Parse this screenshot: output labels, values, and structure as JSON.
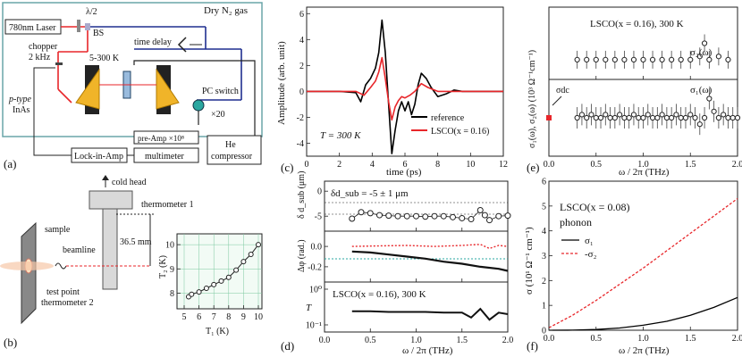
{
  "panel_a": {
    "label": "(a)",
    "gas_box": "Dry N₂ gas",
    "laser": "780nm Laser",
    "half_wave": "λ/2",
    "bs": "BS",
    "time_delay": "time delay",
    "chopper": "chopper",
    "chopper_freq": "2 kHz",
    "temp_range": "5-300 K",
    "ptype_1": "p-type",
    "ptype_2": "InAs",
    "pc_switch": "PC switch",
    "x20": "×20",
    "preamp": "pre-Amp ×10⁸",
    "lockin": "Lock-in-Amp",
    "multimeter": "multimeter",
    "he_1": "He",
    "he_2": "compressor"
  },
  "panel_b": {
    "label": "(b)",
    "cold_head": "cold head",
    "thermometer1": "thermometer 1",
    "sample": "sample",
    "beamline": "beamline",
    "distance": "36.5 mm",
    "test_point": "test point",
    "thermometer2": "thermometer 2",
    "inset": {
      "xlabel": "T₁ (K)",
      "ylabel": "T₂ (K)",
      "xticks": [
        "5",
        "6",
        "7",
        "8",
        "9",
        "10"
      ],
      "yticks": [
        "8",
        "9",
        "10"
      ],
      "x": [
        5.3,
        5.5,
        6.0,
        6.5,
        7.0,
        7.5,
        8.0,
        8.5,
        9.0,
        9.5,
        10.0
      ],
      "y": [
        7.85,
        7.95,
        8.05,
        8.2,
        8.35,
        8.5,
        8.65,
        8.95,
        9.3,
        9.6,
        10.0
      ]
    }
  },
  "panel_c": {
    "label": "(c)",
    "ylabel": "Amplitude (arb. unit)",
    "xlabel": "time (ps)",
    "xticks": [
      "0",
      "2",
      "4",
      "6",
      "8",
      "10",
      "12"
    ],
    "yticks": [
      "-4",
      "-2",
      "0",
      "2",
      "4",
      "6"
    ],
    "annotation": "T = 300 K",
    "legend": [
      "reference",
      "LSCO(x = 0.16)"
    ],
    "colors": {
      "reference": "#000000",
      "sample": "#e8262a"
    },
    "chart_data": {
      "type": "line",
      "xlim": [
        0,
        12
      ],
      "ylim": [
        -5,
        6.5
      ],
      "series": [
        {
          "name": "reference",
          "x": [
            0,
            1,
            2,
            3,
            3.3,
            3.6,
            3.9,
            4.2,
            4.4,
            4.6,
            4.8,
            5.0,
            5.2,
            5.4,
            5.6,
            5.8,
            6.0,
            6.2,
            6.4,
            6.6,
            6.8,
            7.0,
            7.3,
            7.6,
            8.0,
            8.5,
            9.0,
            9.5,
            10,
            11,
            12
          ],
          "y": [
            0,
            0,
            0,
            -0.1,
            -0.8,
            0.5,
            1.0,
            1.8,
            3.0,
            5.5,
            3.0,
            -1.0,
            -4.8,
            -3.0,
            -1.5,
            -0.8,
            -1.5,
            -0.8,
            -1.8,
            -1.0,
            0.5,
            1.4,
            1.0,
            0.3,
            -0.4,
            -0.2,
            0.1,
            0,
            0,
            0,
            0
          ]
        },
        {
          "name": "LSCO(x = 0.16)",
          "x": [
            0,
            1,
            2,
            3,
            3.5,
            3.9,
            4.2,
            4.4,
            4.6,
            4.8,
            5.0,
            5.2,
            5.4,
            5.6,
            5.8,
            6.0,
            6.3,
            6.6,
            7.0,
            7.4,
            8.0,
            9,
            10,
            11,
            12
          ],
          "y": [
            0,
            0,
            0,
            0,
            -0.3,
            0.3,
            0.8,
            1.5,
            2.6,
            1.0,
            -0.8,
            -2.2,
            -1.2,
            -0.7,
            -0.4,
            -0.5,
            -0.3,
            0.0,
            0.6,
            0.3,
            0.0,
            0,
            0,
            0,
            0
          ]
        }
      ]
    }
  },
  "panel_d": {
    "label": "(d)",
    "xlabel": "ω / 2π (THz)",
    "xticks": [
      "0.0",
      "0.5",
      "1.0",
      "1.5",
      "2.0"
    ],
    "top": {
      "annotation": "δd_sub = -5 ± 1 μm",
      "ylabel": "δ d_sub (μm)",
      "yticks": [
        "0",
        "-5"
      ]
    },
    "mid": {
      "ylabel": "Δφ (rad.)",
      "yticks": [
        "0.0",
        "-0.2"
      ]
    },
    "bottom": {
      "annotation": "LSCO(x = 0.16), 300 K",
      "ylabel": "T",
      "yticks": [
        "10⁰",
        "10⁻¹"
      ]
    },
    "chart_data": {
      "type": "line",
      "xlim": [
        0,
        2
      ],
      "series": [
        {
          "name": "δd_sub",
          "x": [
            0.3,
            0.4,
            0.5,
            0.6,
            0.7,
            0.8,
            0.9,
            1.0,
            1.1,
            1.2,
            1.3,
            1.4,
            1.5,
            1.6,
            1.7,
            1.75,
            1.8,
            1.9,
            2.0
          ],
          "y": [
            -5.5,
            -4.2,
            -4.4,
            -4.8,
            -4.9,
            -5.0,
            -5.0,
            -5.0,
            -5.1,
            -5.0,
            -5.0,
            -5.2,
            -5.4,
            -5.6,
            -3.8,
            -4.8,
            -5.8,
            -5.0,
            -4.9
          ]
        },
        {
          "name": "Δφ",
          "x": [
            0.3,
            0.5,
            0.7,
            0.9,
            1.1,
            1.3,
            1.5,
            1.7,
            1.9,
            2.0
          ],
          "y": [
            -0.05,
            -0.06,
            -0.08,
            -0.1,
            -0.12,
            -0.15,
            -0.17,
            -0.2,
            -0.22,
            -0.24
          ]
        },
        {
          "name": "T",
          "x": [
            0.3,
            0.5,
            0.7,
            0.9,
            1.1,
            1.3,
            1.5,
            1.6,
            1.7,
            1.8,
            1.9,
            2.0
          ],
          "y": [
            0.24,
            0.24,
            0.23,
            0.23,
            0.23,
            0.22,
            0.22,
            0.16,
            0.28,
            0.14,
            0.22,
            0.2
          ]
        }
      ]
    }
  },
  "panel_e": {
    "label": "(e)",
    "title": "LSCO(x = 0.16), 300 K",
    "ylabel": "σ₁(ω), σ₂(ω) (10³ Ω⁻¹cm⁻¹)",
    "xlabel": "ω / 2π (THz)",
    "xticks": [
      "0.0",
      "0.5",
      "1.0",
      "1.5",
      "2.0"
    ],
    "sigma2_label": "σ₂(ω)",
    "sigma1_label": "σ₁(ω)",
    "sigma_dc": "σdc",
    "chart_data": {
      "type": "scatter",
      "xlim": [
        0,
        2
      ],
      "series": [
        {
          "name": "σ₂(ω)",
          "x": [
            0.3,
            0.4,
            0.5,
            0.6,
            0.7,
            0.8,
            0.9,
            1.0,
            1.1,
            1.2,
            1.3,
            1.4,
            1.5,
            1.6,
            1.65,
            1.7,
            1.8,
            1.9
          ],
          "y": [
            0,
            0,
            0,
            0,
            0,
            0,
            0,
            0,
            0,
            0,
            0,
            0,
            0,
            0.1,
            0.5,
            0,
            0.1,
            0
          ]
        },
        {
          "name": "σ₁(ω)",
          "x": [
            0.3,
            0.35,
            0.4,
            0.45,
            0.5,
            0.55,
            0.6,
            0.65,
            0.7,
            0.75,
            0.8,
            0.85,
            0.9,
            0.95,
            1.0,
            1.05,
            1.1,
            1.15,
            1.2,
            1.25,
            1.3,
            1.35,
            1.4,
            1.45,
            1.5,
            1.55,
            1.6,
            1.65,
            1.7,
            1.75,
            1.8,
            1.85,
            1.9,
            1.95,
            2.0
          ],
          "y": [
            2.0,
            2.1,
            2.0,
            2.1,
            2.0,
            2.0,
            2.1,
            2.0,
            2.0,
            2.1,
            2.0,
            2.0,
            2.1,
            2.0,
            2.0,
            2.1,
            2.0,
            2.0,
            2.1,
            2.0,
            2.0,
            2.1,
            2.0,
            2.0,
            2.1,
            2.0,
            1.8,
            2.0,
            2.6,
            2.2,
            2.0,
            2.1,
            2.0,
            2.0,
            2.0
          ]
        },
        {
          "name": "σdc",
          "x": [
            0
          ],
          "y": [
            2.0
          ]
        }
      ]
    }
  },
  "panel_f": {
    "label": "(f)",
    "title": "LSCO(x = 0.08)",
    "subtitle": "phonon",
    "ylabel": "σ (10¹ Ω⁻¹ cm⁻¹)",
    "xlabel": "ω / 2π (THz)",
    "xticks": [
      "0.0",
      "0.5",
      "1.0",
      "1.5",
      "2.0"
    ],
    "yticks": [
      "0",
      "1",
      "2",
      "3",
      "4",
      "5",
      "6"
    ],
    "legend": [
      "σ₁",
      "-σ₂"
    ],
    "colors": {
      "sigma1": "#000000",
      "sigma2": "#e8262a"
    },
    "chart_data": {
      "type": "line",
      "xlim": [
        0,
        2
      ],
      "ylim": [
        0,
        6
      ],
      "series": [
        {
          "name": "σ₁",
          "x": [
            0,
            0.25,
            0.5,
            0.75,
            1.0,
            1.25,
            1.5,
            1.75,
            2.0
          ],
          "y": [
            0,
            0.005,
            0.03,
            0.09,
            0.2,
            0.36,
            0.6,
            0.92,
            1.32
          ]
        },
        {
          "name": "-σ₂",
          "x": [
            0,
            0.25,
            0.5,
            0.75,
            1.0,
            1.25,
            1.5,
            1.75,
            2.0
          ],
          "y": [
            0.1,
            0.6,
            1.2,
            1.85,
            2.5,
            3.2,
            3.9,
            4.6,
            5.3
          ]
        }
      ]
    }
  }
}
